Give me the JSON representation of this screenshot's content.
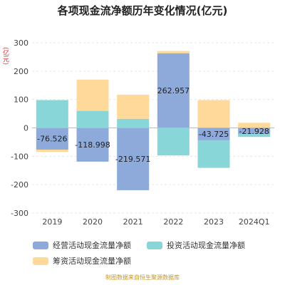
{
  "title": "各项现金流净额历年变化情况(亿元)",
  "unit_label": "(亿元)",
  "source": "制图数据来自恒生聚源数据库",
  "colors": {
    "operating": "#8eaadb",
    "investing": "#88d6d8",
    "financing": "#ffd99a",
    "axis_text": "#444444",
    "grid": "#e6e6e6"
  },
  "chart_data": {
    "type": "bar",
    "stacked": true,
    "title": "各项现金流净额历年变化情况(亿元)",
    "ylabel": "(亿元)",
    "ylim": [
      -300,
      300
    ],
    "yticks": [
      300,
      200,
      100,
      0,
      -100,
      -200,
      -300
    ],
    "categories": [
      "2019",
      "2020",
      "2021",
      "2022",
      "2023",
      "2024Q1"
    ],
    "grid": true,
    "legend_position": "bottom",
    "series": [
      {
        "key": "operating",
        "name": "经营活动现金流量净额",
        "values": [
          -76.526,
          -118.998,
          -219.571,
          262.957,
          -43.725,
          -21.928
        ]
      },
      {
        "key": "investing",
        "name": "投资活动现金流量净额",
        "values": [
          98,
          60,
          32,
          -97,
          -97,
          -10
        ]
      },
      {
        "key": "financing",
        "name": "筹资活动现金流量净额",
        "values": [
          -8,
          110,
          85,
          8,
          98,
          18
        ]
      }
    ],
    "data_labels": [
      "-76.526",
      "-118.998",
      "-219.571",
      "262.957",
      "-43.725",
      "-21.928"
    ]
  }
}
